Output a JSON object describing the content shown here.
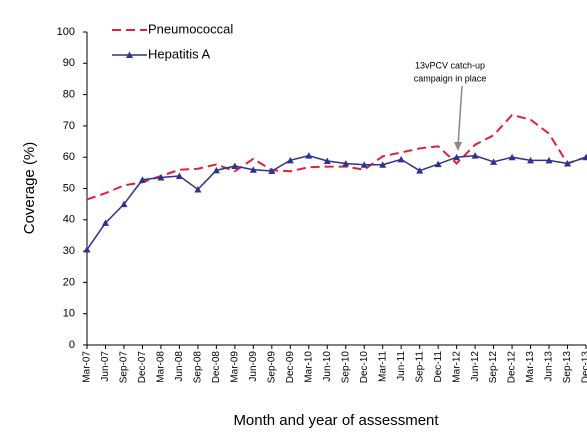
{
  "chart_data": {
    "type": "line",
    "ylabel": "Coverage (%)",
    "xlabel": "Month and year of assessment",
    "categories": [
      "Mar-07",
      "Jun-07",
      "Sep-07",
      "Dec-07",
      "Mar-08",
      "Jun-08",
      "Sep-08",
      "Dec-08",
      "Mar-09",
      "Jun-09",
      "Sep-09",
      "Dec-09",
      "Mar-10",
      "Jun-10",
      "Sep-10",
      "Dec-10",
      "Mar-11",
      "Jun-11",
      "Sep-11",
      "Dec-11",
      "Mar-12",
      "Jun-12",
      "Sep-12",
      "Dec-12",
      "Mar-13",
      "Jun-13",
      "Sep-13",
      "Dec-13"
    ],
    "series": [
      {
        "name": "Pneumococcal",
        "color": "#e0203a",
        "dashed": true,
        "values": [
          46.5,
          48.5,
          51,
          52,
          54,
          56,
          56.3,
          57.7,
          55.5,
          59.5,
          55.8,
          55.5,
          56.8,
          57,
          57,
          56,
          60.3,
          61.5,
          62.8,
          63.5,
          58,
          64,
          67,
          73.5,
          72,
          67.5,
          58,
          60
        ]
      },
      {
        "name": "Hepatitis A",
        "color": "#2e3192",
        "marker": "triangle",
        "values": [
          30.5,
          39,
          45,
          52.8,
          53.5,
          54,
          49.7,
          55.8,
          57.2,
          56,
          55.6,
          59,
          60.5,
          58.8,
          58,
          57.6,
          57.6,
          59.3,
          55.7,
          57.8,
          60,
          60.5,
          58.5,
          60,
          59,
          59,
          58,
          60
        ]
      }
    ],
    "annotation": [
      "13vPCV catch-up",
      "campaign in place"
    ],
    "ylim": [
      0,
      100
    ],
    "yticks": [
      0,
      10,
      20,
      30,
      40,
      50,
      60,
      70,
      80,
      90,
      100
    ]
  }
}
